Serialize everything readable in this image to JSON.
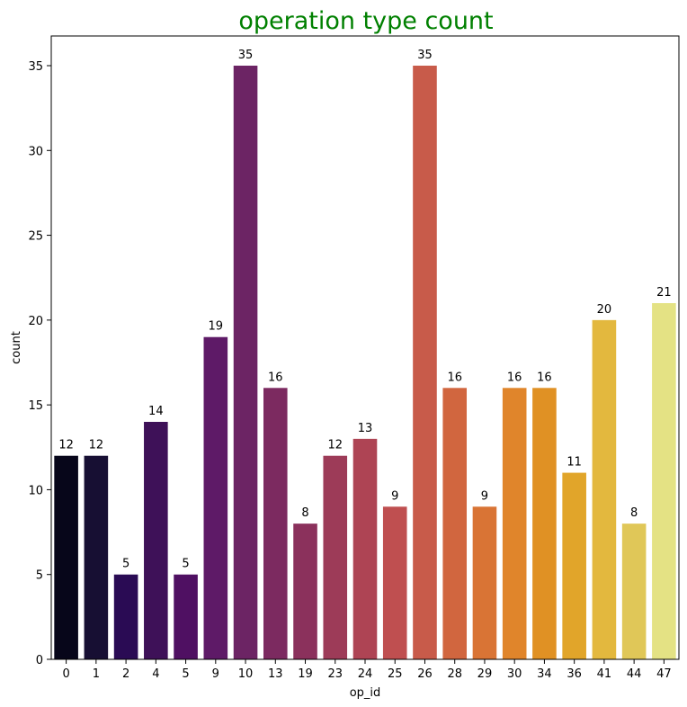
{
  "chart_data": {
    "type": "bar",
    "title": "operation type count",
    "title_color": "#008000",
    "xlabel": "op_id",
    "ylabel": "count",
    "ylim": [
      0,
      36.75
    ],
    "yticks": [
      0,
      5,
      10,
      15,
      20,
      25,
      30,
      35
    ],
    "grid": false,
    "categories": [
      "0",
      "1",
      "2",
      "4",
      "5",
      "9",
      "10",
      "13",
      "19",
      "23",
      "24",
      "25",
      "26",
      "28",
      "29",
      "30",
      "34",
      "36",
      "41",
      "44",
      "47"
    ],
    "values": [
      12,
      12,
      5,
      14,
      5,
      19,
      35,
      16,
      8,
      12,
      13,
      9,
      35,
      16,
      9,
      16,
      16,
      11,
      20,
      8,
      21
    ],
    "colors": [
      "#07061a",
      "#170f33",
      "#2a0b54",
      "#3e1158",
      "#4f1062",
      "#5e1a67",
      "#6c2464",
      "#7c2a60",
      "#8b315c",
      "#9d3b58",
      "#ae4454",
      "#bf4f50",
      "#c85b4a",
      "#d1663f",
      "#d97435",
      "#e0852b",
      "#e09124",
      "#e1a52a",
      "#e3b83e",
      "#e0c758",
      "#e4e284"
    ]
  }
}
